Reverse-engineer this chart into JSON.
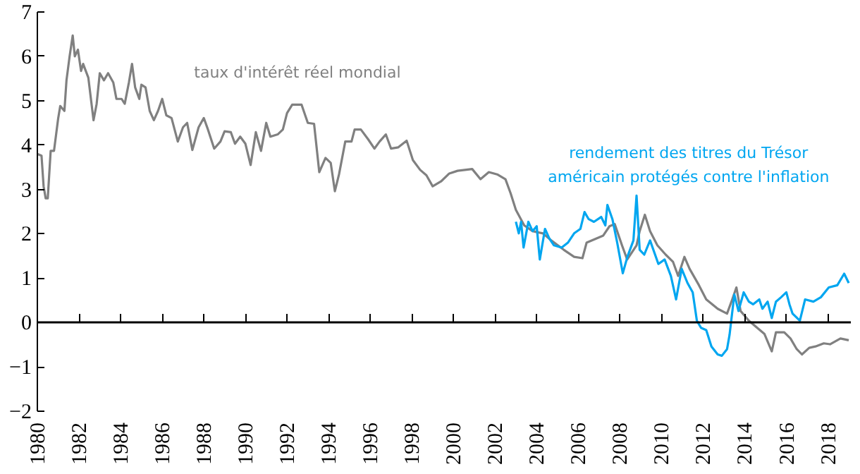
{
  "chart_data": {
    "type": "line",
    "xlim": [
      1980,
      2019.1
    ],
    "ylim": [
      -2,
      7
    ],
    "xticks": [
      1980,
      1982,
      1984,
      1986,
      1988,
      1990,
      1992,
      1994,
      1996,
      1998,
      2000,
      2002,
      2004,
      2006,
      2008,
      2010,
      2012,
      2014,
      2016,
      2018
    ],
    "yticks": [
      -2,
      -1,
      0,
      1,
      2,
      3,
      4,
      5,
      6,
      7
    ],
    "grid": false,
    "ref_lines": [
      {
        "axis": "y",
        "value": 0
      }
    ],
    "series": [
      {
        "name": "taux d'intérêt réel mondial",
        "color": "#808080",
        "x": [
          1980.0,
          1980.2,
          1980.3,
          1980.4,
          1980.5,
          1980.64,
          1980.8,
          1981.0,
          1981.1,
          1981.3,
          1981.4,
          1981.55,
          1981.7,
          1981.8,
          1981.95,
          1982.1,
          1982.2,
          1982.45,
          1982.7,
          1982.85,
          1983.0,
          1983.2,
          1983.4,
          1983.65,
          1983.8,
          1984.05,
          1984.2,
          1984.4,
          1984.55,
          1984.7,
          1984.9,
          1985.0,
          1985.2,
          1985.4,
          1985.6,
          1985.8,
          1986.0,
          1986.2,
          1986.45,
          1986.75,
          1987.0,
          1987.2,
          1987.45,
          1987.75,
          1988.0,
          1988.2,
          1988.5,
          1988.8,
          1989.0,
          1989.3,
          1989.5,
          1989.75,
          1990.0,
          1990.25,
          1990.5,
          1990.75,
          1991.0,
          1991.2,
          1991.55,
          1991.8,
          1992.0,
          1992.25,
          1992.7,
          1993.0,
          1993.3,
          1993.55,
          1993.85,
          1994.1,
          1994.3,
          1994.5,
          1994.8,
          1995.1,
          1995.25,
          1995.55,
          1995.9,
          1996.2,
          1996.45,
          1996.75,
          1997.0,
          1997.35,
          1997.75,
          1998.05,
          1998.4,
          1998.7,
          1999.0,
          1999.4,
          1999.8,
          2000.2,
          2000.9,
          2001.3,
          2001.7,
          2002.1,
          2002.5,
          2002.75,
          2003.0,
          2003.4,
          2003.8,
          2004.3,
          2004.7,
          2005.3,
          2005.8,
          2006.2,
          2006.4,
          2006.9,
          2007.2,
          2007.5,
          2007.75,
          2008.1,
          2008.35,
          2008.8,
          2008.95,
          2009.2,
          2009.45,
          2009.8,
          2010.2,
          2010.55,
          2010.8,
          2011.1,
          2011.35,
          2011.8,
          2012.15,
          2012.7,
          2013.15,
          2013.4,
          2013.6,
          2013.8,
          2014.2,
          2014.6,
          2014.95,
          2015.3,
          2015.5,
          2015.9,
          2016.2,
          2016.5,
          2016.75,
          2017.1,
          2017.4,
          2017.8,
          2018.1,
          2018.6,
          2019.0
        ],
        "values": [
          3.8,
          3.76,
          3.07,
          2.8,
          2.8,
          3.87,
          3.87,
          4.6,
          4.88,
          4.77,
          5.46,
          6.0,
          6.47,
          6.0,
          6.15,
          5.67,
          5.83,
          5.52,
          4.56,
          4.93,
          5.62,
          5.46,
          5.62,
          5.41,
          5.04,
          5.04,
          4.93,
          5.41,
          5.83,
          5.3,
          5.04,
          5.36,
          5.3,
          4.77,
          4.56,
          4.77,
          5.04,
          4.67,
          4.61,
          4.08,
          4.4,
          4.5,
          3.89,
          4.4,
          4.61,
          4.35,
          3.92,
          4.08,
          4.31,
          4.29,
          4.03,
          4.19,
          4.03,
          3.55,
          4.29,
          3.87,
          4.5,
          4.19,
          4.24,
          4.35,
          4.72,
          4.91,
          4.91,
          4.5,
          4.48,
          3.39,
          3.71,
          3.6,
          2.96,
          3.34,
          4.08,
          4.08,
          4.35,
          4.35,
          4.13,
          3.92,
          4.08,
          4.24,
          3.92,
          3.95,
          4.1,
          3.66,
          3.44,
          3.32,
          3.07,
          3.18,
          3.36,
          3.42,
          3.46,
          3.23,
          3.39,
          3.34,
          3.23,
          2.91,
          2.54,
          2.19,
          2.06,
          2.01,
          1.85,
          1.64,
          1.48,
          1.45,
          1.8,
          1.9,
          1.96,
          2.17,
          2.22,
          1.74,
          1.42,
          1.74,
          2.06,
          2.43,
          2.06,
          1.74,
          1.53,
          1.37,
          1.05,
          1.48,
          1.21,
          0.84,
          0.52,
          0.31,
          0.2,
          0.52,
          0.79,
          0.26,
          0.04,
          -0.12,
          -0.26,
          -0.65,
          -0.22,
          -0.22,
          -0.36,
          -0.6,
          -0.72,
          -0.57,
          -0.54,
          -0.47,
          -0.49,
          -0.36,
          -0.4
        ]
      },
      {
        "name": "rendement des titres du Trésor\naméricain protégés contre l'inflation",
        "color": "#00a6f0",
        "x": [
          2003.0,
          2003.14,
          2003.25,
          2003.37,
          2003.6,
          2003.8,
          2004.0,
          2004.15,
          2004.4,
          2004.6,
          2004.83,
          2005.2,
          2005.5,
          2005.8,
          2006.1,
          2006.3,
          2006.5,
          2006.75,
          2007.1,
          2007.3,
          2007.4,
          2007.64,
          2007.87,
          2008.14,
          2008.36,
          2008.65,
          2008.8,
          2008.95,
          2009.17,
          2009.45,
          2009.85,
          2010.15,
          2010.45,
          2010.7,
          2010.97,
          2011.25,
          2011.5,
          2011.7,
          2011.9,
          2012.15,
          2012.4,
          2012.7,
          2012.9,
          2013.15,
          2013.27,
          2013.5,
          2013.7,
          2013.95,
          2014.2,
          2014.4,
          2014.7,
          2014.85,
          2015.1,
          2015.3,
          2015.5,
          2015.75,
          2016.0,
          2016.15,
          2016.3,
          2016.65,
          2016.9,
          2017.3,
          2017.66,
          2018.04,
          2018.45,
          2018.78,
          2019.0
        ],
        "values": [
          2.27,
          2.01,
          2.27,
          1.69,
          2.27,
          2.06,
          2.17,
          1.42,
          2.11,
          1.9,
          1.74,
          1.69,
          1.8,
          2.01,
          2.11,
          2.49,
          2.33,
          2.27,
          2.38,
          2.19,
          2.65,
          2.33,
          1.8,
          1.11,
          1.48,
          1.85,
          2.86,
          1.64,
          1.53,
          1.85,
          1.32,
          1.42,
          1.05,
          0.52,
          1.21,
          0.89,
          0.68,
          0.04,
          -0.12,
          -0.17,
          -0.54,
          -0.72,
          -0.75,
          -0.6,
          -0.28,
          0.63,
          0.26,
          0.68,
          0.47,
          0.41,
          0.52,
          0.31,
          0.47,
          0.1,
          0.47,
          0.57,
          0.68,
          0.41,
          0.2,
          0.04,
          0.52,
          0.47,
          0.57,
          0.79,
          0.84,
          1.1,
          0.89
        ]
      }
    ]
  }
}
